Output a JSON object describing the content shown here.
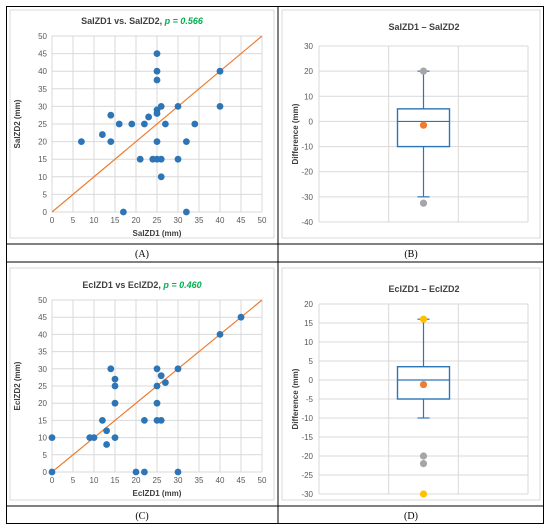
{
  "chart_data": [
    {
      "id": "A",
      "type": "scatter",
      "title": "SaIZD1 vs. SaIZD2,",
      "title_stat": "p = 0.566",
      "xlabel": "SaIZD1 (mm)",
      "ylabel": "SaIZD2 (mm)",
      "xlim": [
        0,
        50
      ],
      "ylim": [
        0,
        50
      ],
      "xticks": [
        0,
        5,
        10,
        15,
        20,
        25,
        30,
        35,
        40,
        45,
        50
      ],
      "yticks": [
        0,
        5,
        10,
        15,
        20,
        25,
        30,
        35,
        40,
        45,
        50
      ],
      "point_color": "#2e75b6",
      "line_color": "#ed7d31",
      "identity_line": true,
      "grid": true,
      "points": [
        [
          7,
          20
        ],
        [
          12,
          22
        ],
        [
          14,
          20
        ],
        [
          14,
          27.5
        ],
        [
          16,
          25
        ],
        [
          17,
          0
        ],
        [
          19,
          25
        ],
        [
          21,
          15
        ],
        [
          22,
          25
        ],
        [
          23,
          27
        ],
        [
          24,
          15
        ],
        [
          25,
          45
        ],
        [
          25,
          40
        ],
        [
          25,
          37.5
        ],
        [
          25,
          20
        ],
        [
          25,
          28
        ],
        [
          25,
          29
        ],
        [
          25,
          15
        ],
        [
          26,
          15
        ],
        [
          26,
          10
        ],
        [
          26,
          30
        ],
        [
          27,
          25
        ],
        [
          30,
          30
        ],
        [
          30,
          15
        ],
        [
          32,
          20
        ],
        [
          32,
          0
        ],
        [
          34,
          25
        ],
        [
          40,
          40
        ],
        [
          40,
          30
        ]
      ],
      "caption": "(A)"
    },
    {
      "id": "B",
      "type": "box",
      "title": "SaIZD1 – SaIZD2",
      "ylabel": "Difference (mm)",
      "ylim": [
        -40,
        30
      ],
      "yticks": [
        -40,
        -30,
        -20,
        -10,
        0,
        10,
        20,
        30
      ],
      "box": {
        "min": -30,
        "q1": -10,
        "median": 0,
        "q3": 5,
        "max": 20,
        "mean": -1.5
      },
      "outliers": [
        20,
        -32.5
      ],
      "box_color": "#2e75b6",
      "mean_color": "#ed7d31",
      "outlier_color": "#a6a6a6",
      "grid": true,
      "caption": "(B)"
    },
    {
      "id": "C",
      "type": "scatter",
      "title": "EcIZD1 vs EcIZD2,",
      "title_stat": "p = 0.460",
      "xlabel": "EcIZD1 (mm)",
      "ylabel": "EcIZD2 (mm)",
      "xlim": [
        0,
        50
      ],
      "ylim": [
        0,
        50
      ],
      "xticks": [
        0,
        5,
        10,
        15,
        20,
        25,
        30,
        35,
        40,
        45,
        50
      ],
      "yticks": [
        0,
        5,
        10,
        15,
        20,
        25,
        30,
        35,
        40,
        45,
        50
      ],
      "point_color": "#2e75b6",
      "line_color": "#ed7d31",
      "identity_line": true,
      "grid": true,
      "points": [
        [
          0,
          10
        ],
        [
          0,
          0
        ],
        [
          9,
          10
        ],
        [
          10,
          10
        ],
        [
          12,
          15
        ],
        [
          13,
          12
        ],
        [
          13,
          8
        ],
        [
          14,
          30
        ],
        [
          15,
          27
        ],
        [
          15,
          25
        ],
        [
          15,
          20
        ],
        [
          15,
          10
        ],
        [
          20,
          0
        ],
        [
          22,
          15
        ],
        [
          22,
          0
        ],
        [
          25,
          30
        ],
        [
          25,
          25
        ],
        [
          25,
          20
        ],
        [
          25,
          15
        ],
        [
          26,
          28
        ],
        [
          26,
          15
        ],
        [
          27,
          26
        ],
        [
          30,
          30
        ],
        [
          30,
          0
        ],
        [
          40,
          40
        ],
        [
          45,
          45
        ]
      ],
      "caption": "(C)"
    },
    {
      "id": "D",
      "type": "box",
      "title": "EcIZD1 – EcIZD2",
      "ylabel": "Difference (mm)",
      "ylim": [
        -30,
        20
      ],
      "yticks": [
        -30,
        -25,
        -20,
        -15,
        -10,
        -5,
        0,
        5,
        10,
        15,
        20
      ],
      "box": {
        "min": -10,
        "q1": -5,
        "median": 0,
        "q3": 3.5,
        "max": 16,
        "mean": -1.2
      },
      "outliers": [
        16,
        -20,
        -22,
        -30
      ],
      "highlight_outliers": [
        16,
        -30
      ],
      "box_color": "#2e75b6",
      "mean_color": "#ed7d31",
      "outlier_color": "#a6a6a6",
      "highlight_color": "#ffc000",
      "grid": true,
      "caption": "(D)"
    }
  ]
}
